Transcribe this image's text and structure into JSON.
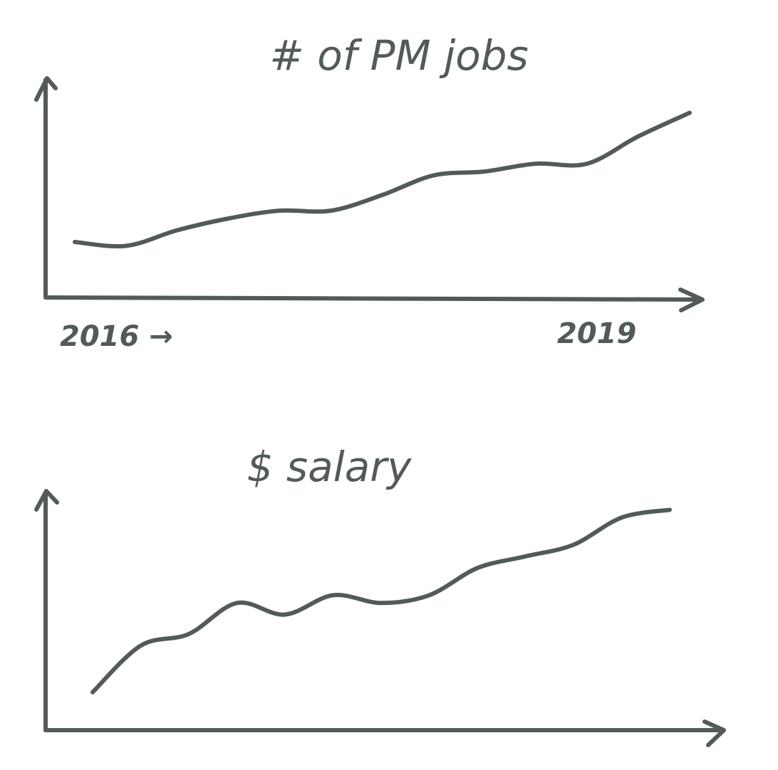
{
  "colors": {
    "ink": "#525a5a",
    "background": "#ffffff"
  },
  "chart_data": [
    {
      "type": "line",
      "title": "# of PM jobs",
      "xlabel": "",
      "ylabel": "",
      "x_tick_labels": [
        "2016 →",
        "2019"
      ],
      "grid": false,
      "x": [
        2016.0,
        2016.25,
        2016.5,
        2016.75,
        2017.0,
        2017.25,
        2017.5,
        2017.75,
        2018.0,
        2018.25,
        2018.5,
        2018.75,
        2019.0
      ],
      "series": [
        {
          "values": [
            10,
            9,
            13,
            16,
            18,
            18,
            22,
            27,
            28,
            30,
            30,
            37,
            43
          ]
        }
      ],
      "ylim": [
        0,
        50
      ]
    },
    {
      "type": "line",
      "title": "$ salary",
      "xlabel": "",
      "ylabel": "",
      "x_tick_labels": [],
      "grid": false,
      "x": [
        2016.0,
        2016.25,
        2016.5,
        2016.75,
        2017.0,
        2017.25,
        2017.5,
        2017.75,
        2018.0,
        2018.25,
        2018.5,
        2018.75,
        2019.0
      ],
      "series": [
        {
          "values": [
            5,
            17,
            20,
            28,
            25,
            30,
            28,
            30,
            37,
            40,
            43,
            50,
            52
          ]
        }
      ],
      "ylim": [
        0,
        55
      ]
    }
  ]
}
